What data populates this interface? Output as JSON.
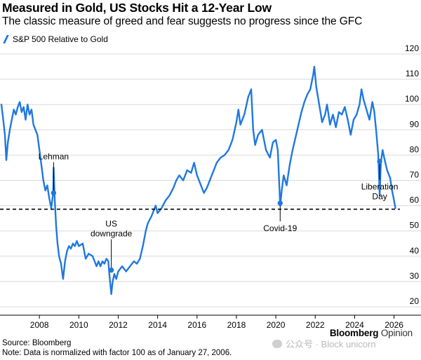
{
  "chart_data": {
    "type": "line",
    "title": "Measured in Gold, US Stocks Hit a 12-Year Low",
    "subtitle": "The classic measure of greed and fear suggests no progress since the GFC",
    "series": [
      {
        "name": "S&P 500 Relative to Gold",
        "color": "#1f78e0",
        "points": [
          [
            2006.07,
            100
          ],
          [
            2006.15,
            95
          ],
          [
            2006.25,
            88
          ],
          [
            2006.32,
            78
          ],
          [
            2006.4,
            85
          ],
          [
            2006.5,
            90
          ],
          [
            2006.6,
            94
          ],
          [
            2006.7,
            98
          ],
          [
            2006.8,
            96
          ],
          [
            2006.9,
            99
          ],
          [
            2007.0,
            101
          ],
          [
            2007.1,
            97
          ],
          [
            2007.2,
            99
          ],
          [
            2007.3,
            94
          ],
          [
            2007.4,
            100
          ],
          [
            2007.5,
            96
          ],
          [
            2007.6,
            98
          ],
          [
            2007.7,
            92
          ],
          [
            2007.8,
            90
          ],
          [
            2007.9,
            88
          ],
          [
            2008.0,
            82
          ],
          [
            2008.1,
            76
          ],
          [
            2008.2,
            70
          ],
          [
            2008.3,
            66
          ],
          [
            2008.4,
            68
          ],
          [
            2008.5,
            63
          ],
          [
            2008.6,
            59
          ],
          [
            2008.7,
            65
          ],
          [
            2008.72,
            75
          ],
          [
            2008.78,
            62
          ],
          [
            2008.85,
            52
          ],
          [
            2008.92,
            45
          ],
          [
            2009.0,
            40
          ],
          [
            2009.1,
            37
          ],
          [
            2009.2,
            31
          ],
          [
            2009.3,
            38
          ],
          [
            2009.4,
            42
          ],
          [
            2009.5,
            44
          ],
          [
            2009.6,
            43
          ],
          [
            2009.7,
            45
          ],
          [
            2009.8,
            44
          ],
          [
            2009.9,
            46
          ],
          [
            2010.0,
            44
          ],
          [
            2010.2,
            45
          ],
          [
            2010.35,
            39
          ],
          [
            2010.5,
            41
          ],
          [
            2010.7,
            40
          ],
          [
            2010.8,
            38
          ],
          [
            2010.9,
            36
          ],
          [
            2011.0,
            38
          ],
          [
            2011.1,
            36
          ],
          [
            2011.2,
            38
          ],
          [
            2011.3,
            37
          ],
          [
            2011.4,
            39
          ],
          [
            2011.5,
            38
          ],
          [
            2011.55,
            33
          ],
          [
            2011.6,
            29
          ],
          [
            2011.65,
            25
          ],
          [
            2011.72,
            30
          ],
          [
            2011.8,
            33
          ],
          [
            2011.9,
            31
          ],
          [
            2012.0,
            34
          ],
          [
            2012.2,
            36
          ],
          [
            2012.4,
            34
          ],
          [
            2012.6,
            36
          ],
          [
            2012.8,
            38
          ],
          [
            2012.95,
            37
          ],
          [
            2013.1,
            39
          ],
          [
            2013.25,
            44
          ],
          [
            2013.4,
            50
          ],
          [
            2013.5,
            53
          ],
          [
            2013.7,
            56
          ],
          [
            2013.9,
            60
          ],
          [
            2014.0,
            57
          ],
          [
            2014.2,
            59
          ],
          [
            2014.4,
            62
          ],
          [
            2014.6,
            64
          ],
          [
            2014.8,
            67
          ],
          [
            2014.95,
            70
          ],
          [
            2015.1,
            72
          ],
          [
            2015.3,
            70
          ],
          [
            2015.5,
            74
          ],
          [
            2015.7,
            73
          ],
          [
            2015.85,
            77
          ],
          [
            2016.0,
            72
          ],
          [
            2016.2,
            68
          ],
          [
            2016.35,
            65
          ],
          [
            2016.5,
            67
          ],
          [
            2016.7,
            71
          ],
          [
            2016.9,
            75
          ],
          [
            2017.0,
            77
          ],
          [
            2017.2,
            79
          ],
          [
            2017.4,
            80
          ],
          [
            2017.6,
            82
          ],
          [
            2017.8,
            86
          ],
          [
            2018.0,
            93
          ],
          [
            2018.1,
            98
          ],
          [
            2018.2,
            92
          ],
          [
            2018.4,
            96
          ],
          [
            2018.6,
            103
          ],
          [
            2018.75,
            106
          ],
          [
            2018.85,
            90
          ],
          [
            2018.95,
            84
          ],
          [
            2019.1,
            88
          ],
          [
            2019.3,
            90
          ],
          [
            2019.5,
            82
          ],
          [
            2019.7,
            79
          ],
          [
            2019.85,
            85
          ],
          [
            2020.0,
            86
          ],
          [
            2020.1,
            82
          ],
          [
            2020.22,
            60
          ],
          [
            2020.3,
            66
          ],
          [
            2020.4,
            72
          ],
          [
            2020.55,
            68
          ],
          [
            2020.7,
            76
          ],
          [
            2020.85,
            82
          ],
          [
            2021.0,
            87
          ],
          [
            2021.15,
            92
          ],
          [
            2021.3,
            97
          ],
          [
            2021.45,
            101
          ],
          [
            2021.6,
            104
          ],
          [
            2021.75,
            106
          ],
          [
            2021.9,
            112
          ],
          [
            2021.95,
            115
          ],
          [
            2022.05,
            107
          ],
          [
            2022.2,
            100
          ],
          [
            2022.35,
            93
          ],
          [
            2022.5,
            96
          ],
          [
            2022.6,
            100
          ],
          [
            2022.75,
            92
          ],
          [
            2022.9,
            96
          ],
          [
            2023.05,
            91
          ],
          [
            2023.2,
            97
          ],
          [
            2023.35,
            96
          ],
          [
            2023.5,
            99
          ],
          [
            2023.65,
            94
          ],
          [
            2023.8,
            88
          ],
          [
            2023.95,
            94
          ],
          [
            2024.1,
            96
          ],
          [
            2024.25,
            100
          ],
          [
            2024.35,
            106
          ],
          [
            2024.45,
            102
          ],
          [
            2024.6,
            98
          ],
          [
            2024.75,
            94
          ],
          [
            2024.9,
            101
          ],
          [
            2025.0,
            97
          ],
          [
            2025.1,
            89
          ],
          [
            2025.2,
            80
          ],
          [
            2025.27,
            64
          ],
          [
            2025.33,
            77
          ],
          [
            2025.42,
            82
          ],
          [
            2025.5,
            79
          ],
          [
            2025.65,
            74
          ],
          [
            2025.8,
            71
          ],
          [
            2025.9,
            66
          ],
          [
            2026.0,
            62
          ],
          [
            2026.07,
            59
          ]
        ]
      }
    ],
    "xlim": [
      2006.0,
      2026.3
    ],
    "ylim": [
      20,
      120
    ],
    "x_ticks": [
      2008,
      2010,
      2012,
      2014,
      2016,
      2018,
      2020,
      2022,
      2024,
      2026
    ],
    "y_ticks": [
      20,
      30,
      40,
      50,
      60,
      70,
      80,
      90,
      100,
      110,
      120
    ],
    "grid": "horizontal",
    "y_axis_side": "right",
    "legend_position": "top-left",
    "reference_line": {
      "y": 58.6,
      "style": "dashed",
      "color": "#000000"
    },
    "annotations": [
      {
        "label": "Lehman",
        "x": 2008.72,
        "y": 65,
        "label_side": "above"
      },
      {
        "label": "US\ndowngrade",
        "x": 2011.65,
        "y": 34.5,
        "label_side": "above"
      },
      {
        "label": "Covid-19",
        "x": 2020.22,
        "y": 61,
        "label_side": "below"
      },
      {
        "label": "Liberation\nDay",
        "x": 2025.27,
        "y": 77.5,
        "label_side": "below"
      }
    ]
  },
  "footer": {
    "source": "Source: Bloomberg",
    "note": "Note: Data is normalized with factor 100 as of January 27, 2006."
  },
  "brand": {
    "name": "Bloomberg",
    "suffix": "Opinion"
  },
  "watermark": {
    "text": "公众号 · Block unicorn"
  }
}
